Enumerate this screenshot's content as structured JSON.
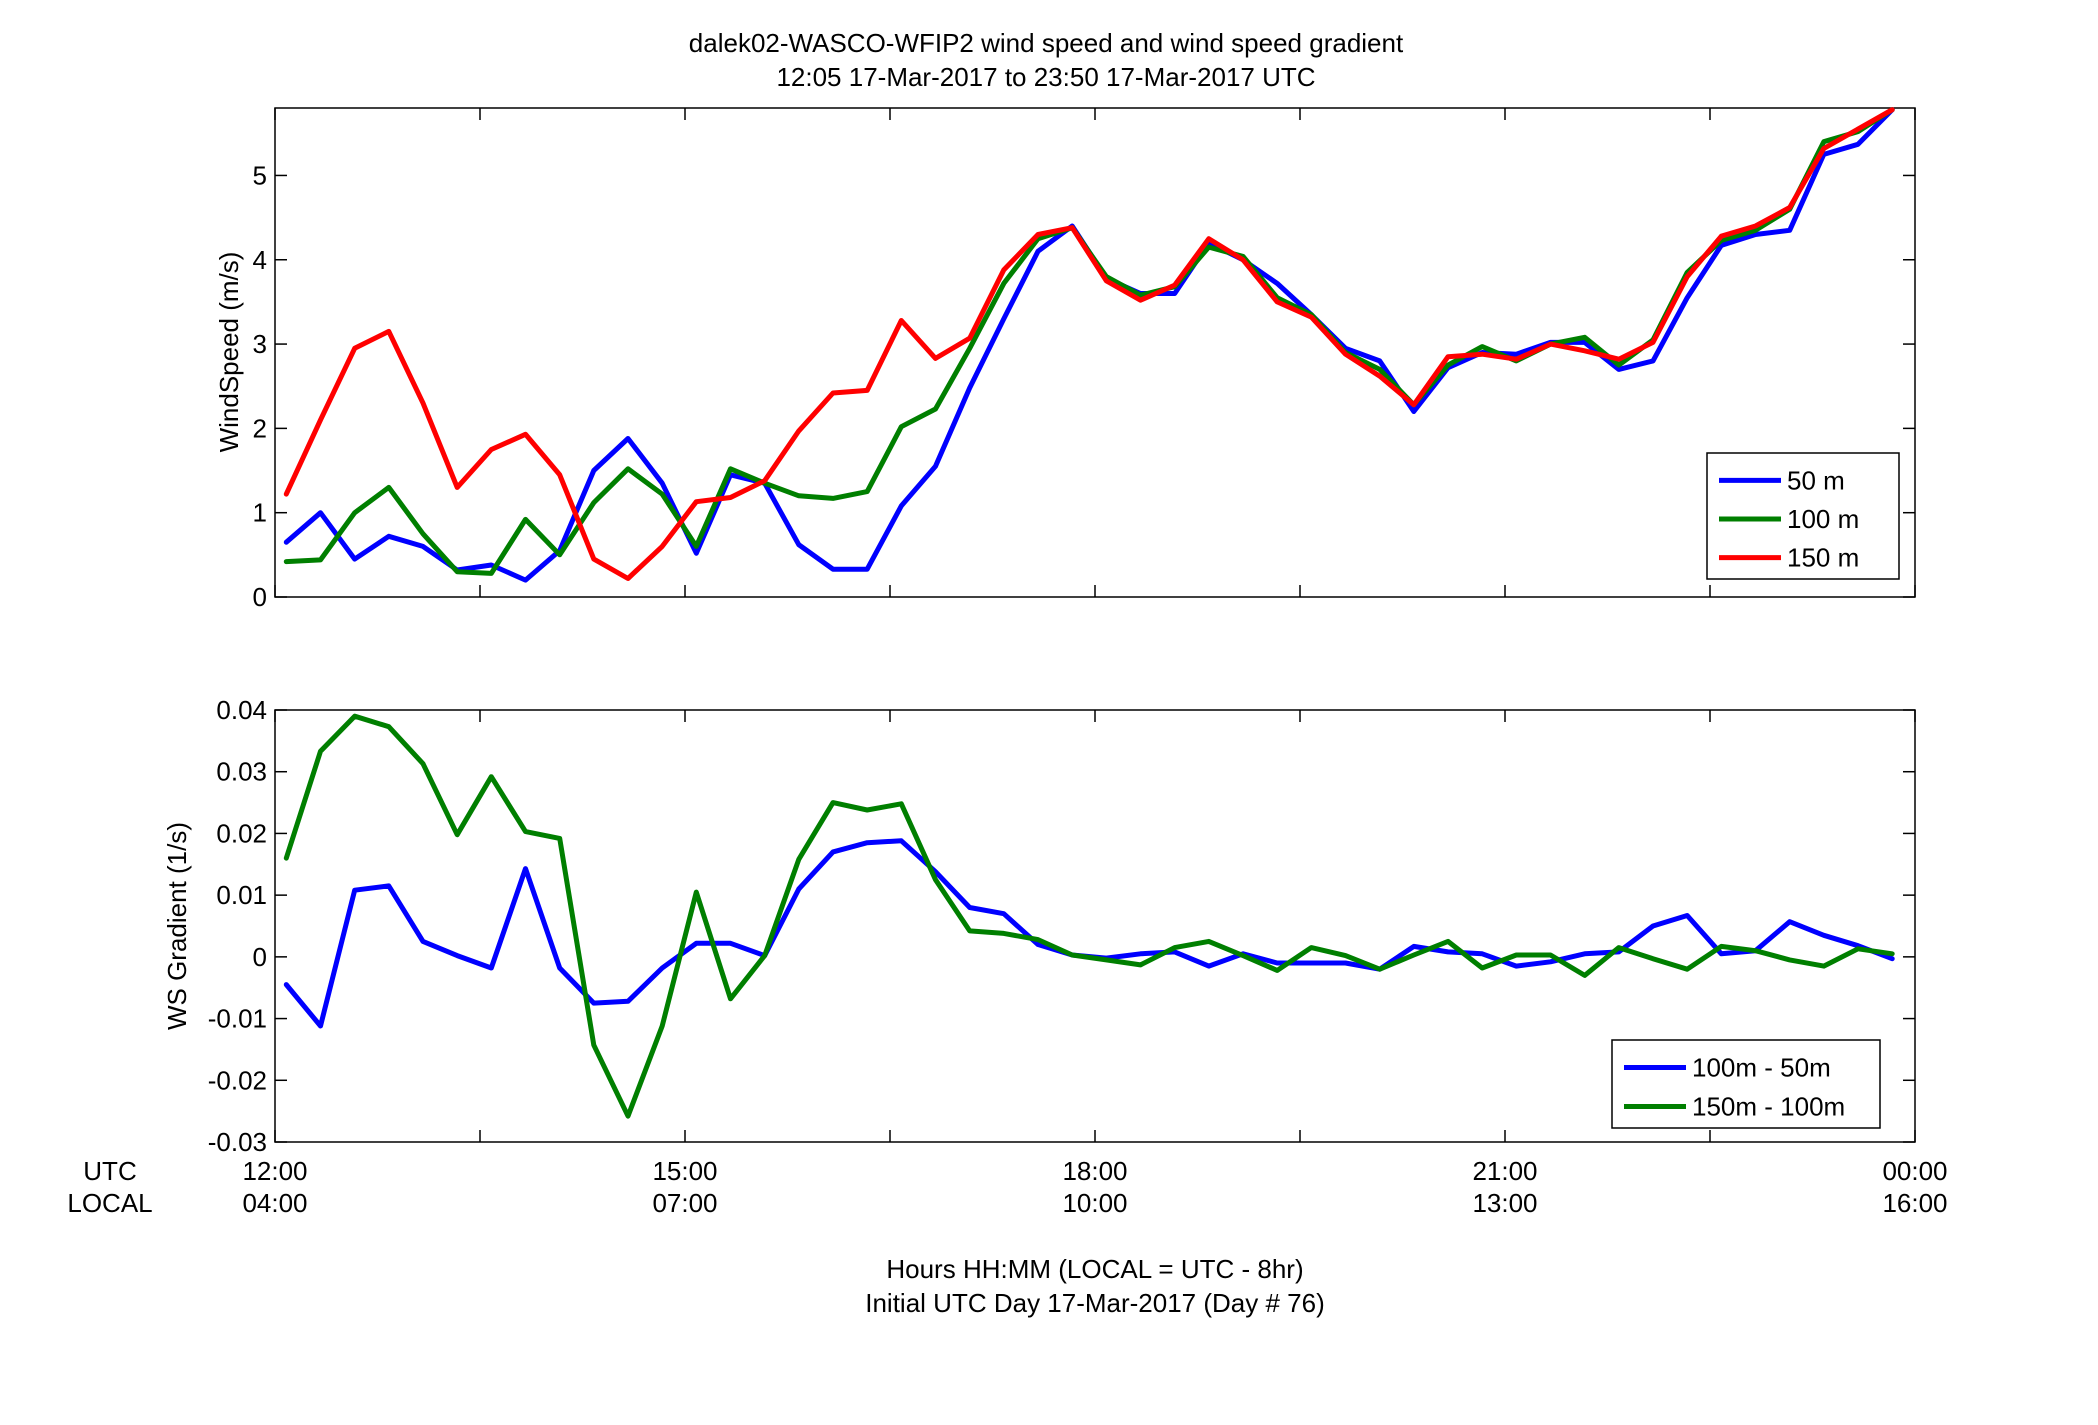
{
  "title": {
    "line1": "dalek02-WASCO-WFIP2  wind speed and wind speed gradient",
    "line2": "12:05 17-Mar-2017 to 23:50 17-Mar-2017  UTC"
  },
  "xaxis": {
    "row1_label": "UTC",
    "row2_label": "LOCAL",
    "utc_ticks": [
      "12:00",
      "15:00",
      "18:00",
      "21:00",
      "00:00"
    ],
    "local_ticks": [
      "04:00",
      "07:00",
      "10:00",
      "13:00",
      "16:00"
    ],
    "xlabel_line1": "Hours HH:MM  (LOCAL = UTC - 8hr)",
    "xlabel_line2": "Initial UTC Day 17-Mar-2017 (Day # 76)"
  },
  "chart_data": [
    {
      "type": "line",
      "ylabel": "WindSpeed (m/s)",
      "ylim": [
        0,
        5.8
      ],
      "yticks": [
        0,
        1,
        2,
        3,
        4,
        5
      ],
      "ytick_labels": [
        "0",
        "1",
        "2",
        "3",
        "4",
        "5"
      ],
      "xlim": [
        12,
        24
      ],
      "grid": false,
      "legend_position": "bottom-right",
      "x": [
        12.083,
        12.333,
        12.583,
        12.833,
        13.083,
        13.333,
        13.583,
        13.833,
        14.083,
        14.333,
        14.583,
        14.833,
        15.083,
        15.333,
        15.583,
        15.833,
        16.083,
        16.333,
        16.583,
        16.833,
        17.083,
        17.333,
        17.583,
        17.833,
        18.083,
        18.333,
        18.583,
        18.833,
        19.083,
        19.333,
        19.583,
        19.833,
        20.083,
        20.333,
        20.583,
        20.833,
        21.083,
        21.333,
        21.583,
        21.833,
        22.083,
        22.333,
        22.583,
        22.833,
        23.083,
        23.333,
        23.583,
        23.833
      ],
      "series": [
        {
          "name": "50 m",
          "color": "#0000ff",
          "values": [
            0.65,
            1.0,
            0.45,
            0.72,
            0.6,
            0.32,
            0.38,
            0.2,
            0.55,
            1.5,
            1.88,
            1.35,
            0.52,
            1.45,
            1.35,
            0.62,
            0.33,
            0.33,
            1.08,
            1.55,
            2.48,
            3.3,
            4.1,
            4.4,
            3.78,
            3.6,
            3.6,
            4.2,
            4.0,
            3.72,
            3.35,
            2.95,
            2.8,
            2.2,
            2.72,
            2.9,
            2.88,
            3.02,
            3.02,
            2.7,
            2.8,
            3.55,
            4.17,
            4.3,
            4.35,
            5.25,
            5.37,
            5.78
          ]
        },
        {
          "name": "100 m",
          "color": "#007f00",
          "values": [
            0.42,
            0.44,
            1.0,
            1.3,
            0.75,
            0.3,
            0.28,
            0.92,
            0.5,
            1.12,
            1.52,
            1.22,
            0.6,
            1.52,
            1.35,
            1.2,
            1.17,
            1.25,
            2.02,
            2.23,
            2.95,
            3.72,
            4.25,
            4.38,
            3.8,
            3.58,
            3.68,
            4.15,
            4.04,
            3.55,
            3.35,
            2.9,
            2.7,
            2.28,
            2.75,
            2.97,
            2.8,
            3.0,
            3.08,
            2.75,
            3.05,
            3.85,
            4.23,
            4.35,
            4.6,
            5.4,
            5.52,
            5.78
          ]
        },
        {
          "name": "150 m",
          "color": "#ff0000",
          "values": [
            1.22,
            2.1,
            2.95,
            3.15,
            2.3,
            1.3,
            1.75,
            1.93,
            1.45,
            0.45,
            0.22,
            0.6,
            1.13,
            1.18,
            1.38,
            1.97,
            2.42,
            2.45,
            3.28,
            2.83,
            3.07,
            3.88,
            4.3,
            4.38,
            3.75,
            3.52,
            3.7,
            4.25,
            4.0,
            3.5,
            3.32,
            2.88,
            2.62,
            2.28,
            2.85,
            2.88,
            2.82,
            3.0,
            2.92,
            2.82,
            3.02,
            3.8,
            4.28,
            4.4,
            4.62,
            5.32,
            5.55,
            5.78
          ]
        }
      ]
    },
    {
      "type": "line",
      "ylabel": "WS Gradient (1/s)",
      "ylim": [
        -0.03,
        0.04
      ],
      "yticks": [
        -0.03,
        -0.02,
        -0.01,
        0,
        0.01,
        0.02,
        0.03,
        0.04
      ],
      "ytick_labels": [
        "-0.03",
        "-0.02",
        "-0.01",
        "0",
        "0.01",
        "0.02",
        "0.03",
        "0.04"
      ],
      "xlim": [
        12,
        24
      ],
      "grid": false,
      "legend_position": "bottom-right",
      "x": [
        12.083,
        12.333,
        12.583,
        12.833,
        13.083,
        13.333,
        13.583,
        13.833,
        14.083,
        14.333,
        14.583,
        14.833,
        15.083,
        15.333,
        15.583,
        15.833,
        16.083,
        16.333,
        16.583,
        16.833,
        17.083,
        17.333,
        17.583,
        17.833,
        18.083,
        18.333,
        18.583,
        18.833,
        19.083,
        19.333,
        19.583,
        19.833,
        20.083,
        20.333,
        20.583,
        20.833,
        21.083,
        21.333,
        21.583,
        21.833,
        22.083,
        22.333,
        22.583,
        22.833,
        23.083,
        23.333,
        23.583,
        23.833
      ],
      "series": [
        {
          "name": "100m - 50m",
          "color": "#0000ff",
          "values": [
            -0.0045,
            -0.0112,
            0.0108,
            0.0115,
            0.0025,
            0.0002,
            -0.0018,
            0.0143,
            -0.0018,
            -0.0075,
            -0.0072,
            -0.0018,
            0.0022,
            0.0022,
            0.0002,
            0.011,
            0.017,
            0.0185,
            0.0188,
            0.0138,
            0.008,
            0.007,
            0.002,
            0.0003,
            -0.0002,
            0.0005,
            0.0008,
            -0.0015,
            0.0005,
            -0.001,
            -0.001,
            -0.001,
            -0.002,
            0.0017,
            0.0008,
            0.0005,
            -0.0015,
            -0.0008,
            0.0005,
            0.0008,
            0.005,
            0.0067,
            0.0005,
            0.001,
            0.0057,
            0.0035,
            0.0018,
            -0.0003
          ]
        },
        {
          "name": "150m - 100m",
          "color": "#007f00",
          "values": [
            0.016,
            0.0333,
            0.039,
            0.0373,
            0.0313,
            0.0198,
            0.0292,
            0.0203,
            0.0192,
            -0.0143,
            -0.0258,
            -0.0112,
            0.0105,
            -0.0068,
            0.0002,
            0.0158,
            0.025,
            0.0238,
            0.0248,
            0.0125,
            0.0042,
            0.0038,
            0.0028,
            0.0003,
            -0.0005,
            -0.0013,
            0.0015,
            0.0025,
            0.0002,
            -0.0022,
            0.0015,
            0.0002,
            -0.002,
            0.0003,
            0.0025,
            -0.0018,
            0.0003,
            0.0003,
            -0.003,
            0.0015,
            -0.0003,
            -0.002,
            0.0017,
            0.001,
            -0.0005,
            -0.0015,
            0.0013,
            0.0005
          ]
        }
      ]
    }
  ]
}
